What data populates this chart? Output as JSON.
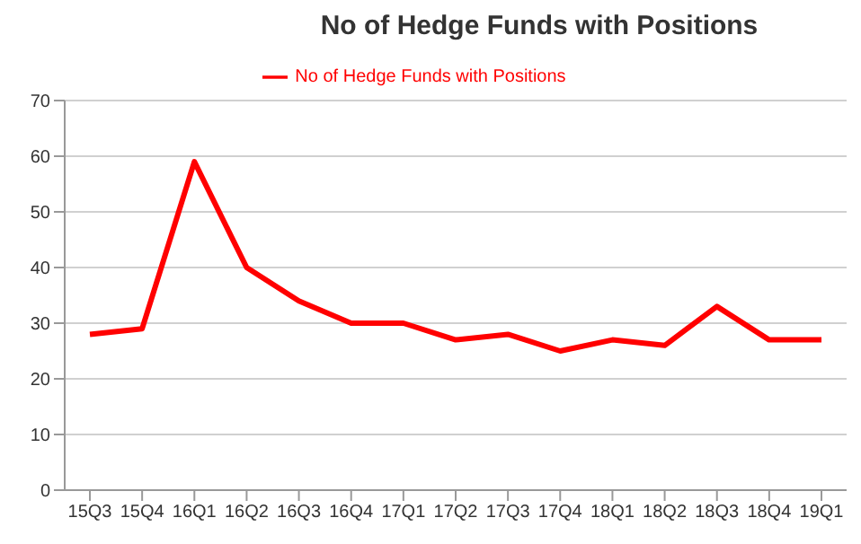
{
  "chart_data": {
    "type": "line",
    "title": "No of Hedge Funds with Positions",
    "categories": [
      "15Q3",
      "15Q4",
      "16Q1",
      "16Q2",
      "16Q3",
      "16Q4",
      "17Q1",
      "17Q2",
      "17Q3",
      "17Q4",
      "18Q1",
      "18Q2",
      "18Q3",
      "18Q4",
      "19Q1"
    ],
    "series": [
      {
        "name": "No of Hedge Funds with Positions",
        "color": "#ff0000",
        "values": [
          28,
          29,
          59,
          40,
          34,
          30,
          30,
          27,
          28,
          25,
          27,
          26,
          33,
          27,
          27
        ]
      }
    ],
    "ylim": [
      0,
      70
    ],
    "yticks": [
      0,
      10,
      20,
      30,
      40,
      50,
      60,
      70
    ],
    "grid": "y",
    "legend": "top",
    "marker": "none",
    "line_style": "solid"
  }
}
